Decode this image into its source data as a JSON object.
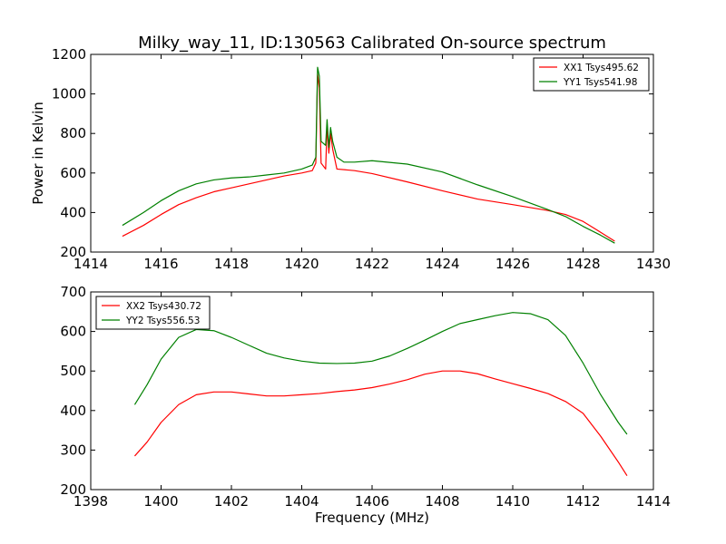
{
  "chart_data": [
    {
      "type": "line",
      "title": "Milky_way_11, ID:130563 Calibrated On-source spectrum",
      "xlabel": "",
      "ylabel": "Power in Kelvin",
      "xlim": [
        1414,
        1430
      ],
      "ylim": [
        200,
        1200
      ],
      "x_ticks": [
        "1414",
        "1416",
        "1418",
        "1420",
        "1422",
        "1424",
        "1426",
        "1428",
        "1430"
      ],
      "y_ticks": [
        "200",
        "400",
        "600",
        "800",
        "1000",
        "1200"
      ],
      "grid": false,
      "legend_position": "top-right",
      "series": [
        {
          "name": "XX1 Tsys495.62",
          "color": "#ff0000",
          "points": [
            [
              1414.9,
              280
            ],
            [
              1415.5,
              335
            ],
            [
              1416,
              390
            ],
            [
              1416.5,
              440
            ],
            [
              1417,
              475
            ],
            [
              1417.5,
              505
            ],
            [
              1418,
              525
            ],
            [
              1418.5,
              545
            ],
            [
              1419,
              565
            ],
            [
              1419.5,
              585
            ],
            [
              1420,
              600
            ],
            [
              1420.3,
              612
            ],
            [
              1420.4,
              650
            ],
            [
              1420.45,
              1100
            ],
            [
              1420.5,
              1030
            ],
            [
              1420.55,
              650
            ],
            [
              1420.68,
              620
            ],
            [
              1420.72,
              840
            ],
            [
              1420.77,
              700
            ],
            [
              1420.82,
              800
            ],
            [
              1420.88,
              720
            ],
            [
              1421,
              620
            ],
            [
              1421.5,
              612
            ],
            [
              1422,
              597
            ],
            [
              1423,
              555
            ],
            [
              1424,
              510
            ],
            [
              1425,
              468
            ],
            [
              1426,
              440
            ],
            [
              1427,
              410
            ],
            [
              1427.5,
              390
            ],
            [
              1428,
              355
            ],
            [
              1428.5,
              300
            ],
            [
              1428.9,
              255
            ]
          ]
        },
        {
          "name": "YY1 Tsys541.98",
          "color": "#008000",
          "points": [
            [
              1414.9,
              335
            ],
            [
              1415.5,
              400
            ],
            [
              1416,
              460
            ],
            [
              1416.5,
              510
            ],
            [
              1417,
              545
            ],
            [
              1417.5,
              565
            ],
            [
              1418,
              575
            ],
            [
              1418.5,
              580
            ],
            [
              1419,
              590
            ],
            [
              1419.5,
              600
            ],
            [
              1420,
              620
            ],
            [
              1420.3,
              640
            ],
            [
              1420.4,
              680
            ],
            [
              1420.45,
              1135
            ],
            [
              1420.5,
              1090
            ],
            [
              1420.55,
              760
            ],
            [
              1420.68,
              740
            ],
            [
              1420.72,
              870
            ],
            [
              1420.77,
              730
            ],
            [
              1420.82,
              830
            ],
            [
              1420.88,
              760
            ],
            [
              1421,
              680
            ],
            [
              1421.2,
              655
            ],
            [
              1421.5,
              655
            ],
            [
              1422,
              662
            ],
            [
              1423,
              645
            ],
            [
              1424,
              605
            ],
            [
              1425,
              540
            ],
            [
              1426,
              480
            ],
            [
              1427,
              415
            ],
            [
              1427.5,
              380
            ],
            [
              1428,
              330
            ],
            [
              1428.5,
              285
            ],
            [
              1428.9,
              245
            ]
          ]
        }
      ]
    },
    {
      "type": "line",
      "title": "",
      "xlabel": "Frequency (MHz)",
      "ylabel": "",
      "xlim": [
        1398,
        1414
      ],
      "ylim": [
        200,
        700
      ],
      "x_ticks": [
        "1398",
        "1400",
        "1402",
        "1404",
        "1406",
        "1408",
        "1410",
        "1412",
        "1414"
      ],
      "y_ticks": [
        "200",
        "300",
        "400",
        "500",
        "600",
        "700"
      ],
      "grid": false,
      "legend_position": "top-left",
      "series": [
        {
          "name": "XX2 Tsys430.72",
          "color": "#ff0000",
          "points": [
            [
              1399.25,
              285
            ],
            [
              1399.6,
              320
            ],
            [
              1400,
              370
            ],
            [
              1400.5,
              415
            ],
            [
              1401,
              440
            ],
            [
              1401.5,
              447
            ],
            [
              1402,
              447
            ],
            [
              1402.5,
              442
            ],
            [
              1403,
              437
            ],
            [
              1403.5,
              437
            ],
            [
              1404,
              440
            ],
            [
              1404.5,
              443
            ],
            [
              1405,
              448
            ],
            [
              1405.5,
              452
            ],
            [
              1406,
              458
            ],
            [
              1406.5,
              467
            ],
            [
              1407,
              478
            ],
            [
              1407.5,
              492
            ],
            [
              1408,
              500
            ],
            [
              1408.5,
              500
            ],
            [
              1409,
              493
            ],
            [
              1409.5,
              480
            ],
            [
              1410,
              468
            ],
            [
              1410.5,
              456
            ],
            [
              1411,
              443
            ],
            [
              1411.5,
              423
            ],
            [
              1412,
              393
            ],
            [
              1412.5,
              335
            ],
            [
              1413,
              270
            ],
            [
              1413.25,
              235
            ]
          ]
        },
        {
          "name": "YY2 Tsys556.53",
          "color": "#008000",
          "points": [
            [
              1399.25,
              415
            ],
            [
              1399.6,
              465
            ],
            [
              1400,
              530
            ],
            [
              1400.5,
              585
            ],
            [
              1401,
              605
            ],
            [
              1401.5,
              602
            ],
            [
              1402,
              585
            ],
            [
              1402.5,
              565
            ],
            [
              1403,
              545
            ],
            [
              1403.5,
              533
            ],
            [
              1404,
              525
            ],
            [
              1404.5,
              520
            ],
            [
              1405,
              519
            ],
            [
              1405.5,
              520
            ],
            [
              1406,
              525
            ],
            [
              1406.5,
              538
            ],
            [
              1407,
              557
            ],
            [
              1407.5,
              578
            ],
            [
              1408,
              600
            ],
            [
              1408.5,
              620
            ],
            [
              1409,
              630
            ],
            [
              1409.5,
              640
            ],
            [
              1410,
              648
            ],
            [
              1410.5,
              645
            ],
            [
              1411,
              630
            ],
            [
              1411.5,
              590
            ],
            [
              1412,
              520
            ],
            [
              1412.5,
              440
            ],
            [
              1413,
              370
            ],
            [
              1413.25,
              340
            ]
          ]
        }
      ]
    }
  ]
}
